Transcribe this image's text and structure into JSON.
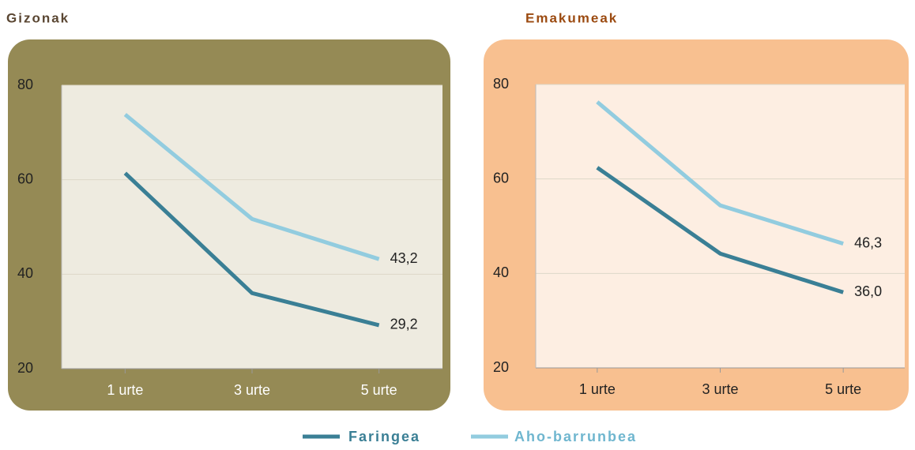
{
  "chart_data": [
    {
      "type": "line",
      "title": "Gizonak",
      "categories": [
        "1 urte",
        "3 urte",
        "5 urte"
      ],
      "series": [
        {
          "name": "Faringea",
          "color": "#3a7f95",
          "values": [
            61.4,
            36.0,
            29.2
          ],
          "value_labels": [
            null,
            null,
            "29,2"
          ]
        },
        {
          "name": "Aho-barrunbea",
          "color": "#92ccdf",
          "values": [
            73.8,
            51.7,
            43.2
          ],
          "value_labels": [
            null,
            null,
            "43,2"
          ]
        }
      ],
      "ylim": [
        20,
        80
      ],
      "yticks": [
        20,
        40,
        60,
        80
      ],
      "grid": true
    },
    {
      "type": "line",
      "title": "Emakumeak",
      "categories": [
        "1 urte",
        "3 urte",
        "5 urte"
      ],
      "series": [
        {
          "color": "#3a7f95",
          "values": [
            62.4,
            44.2,
            36.0
          ],
          "value_labels": [
            null,
            null,
            "36,0"
          ]
        },
        {
          "color": "#92ccdf",
          "values": [
            76.3,
            54.4,
            46.3
          ],
          "value_labels": [
            null,
            null,
            "46,3"
          ]
        }
      ],
      "ylim": [
        20,
        80
      ],
      "yticks": [
        20,
        40,
        60,
        80
      ],
      "grid": true
    }
  ]
}
